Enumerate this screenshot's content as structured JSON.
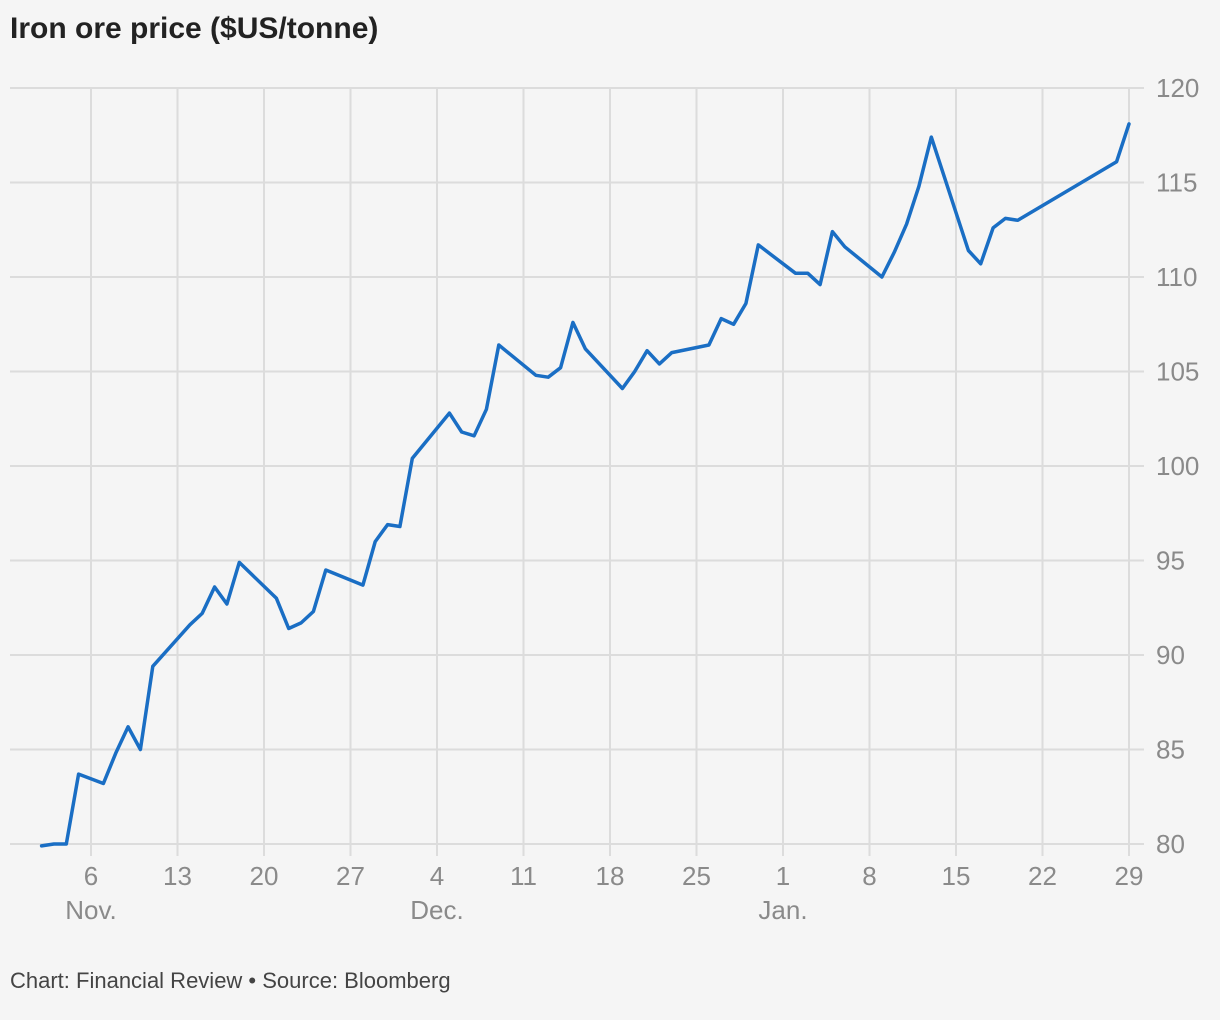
{
  "chart_data": {
    "type": "line",
    "title": "Iron ore price ($US/tonne)",
    "xlabel": "",
    "ylabel": "",
    "ylim": [
      80,
      120
    ],
    "y_ticks": [
      80,
      85,
      90,
      95,
      100,
      105,
      110,
      115,
      120
    ],
    "x_ticks": [
      {
        "day": 6,
        "label": "6"
      },
      {
        "day": 13,
        "label": "13"
      },
      {
        "day": 20,
        "label": "20"
      },
      {
        "day": 27,
        "label": "27"
      },
      {
        "day": 34,
        "label": "4"
      },
      {
        "day": 41,
        "label": "11"
      },
      {
        "day": 48,
        "label": "18"
      },
      {
        "day": 55,
        "label": "25"
      },
      {
        "day": 62,
        "label": "1"
      },
      {
        "day": 69,
        "label": "8"
      },
      {
        "day": 76,
        "label": "15"
      },
      {
        "day": 83,
        "label": "22"
      },
      {
        "day": 90,
        "label": "29"
      }
    ],
    "month_labels": [
      {
        "day": 6,
        "label": "Nov."
      },
      {
        "day": 34,
        "label": "Dec."
      },
      {
        "day": 62,
        "label": "Jan."
      }
    ],
    "grid": true,
    "y_axis_side": "right",
    "series_color": "#1a6ec4",
    "x": [
      2,
      3,
      4,
      5,
      7,
      8,
      9,
      10,
      11,
      14,
      15,
      16,
      17,
      18,
      21,
      22,
      23,
      24,
      25,
      28,
      29,
      30,
      31,
      32,
      35,
      36,
      37,
      38,
      39,
      42,
      43,
      44,
      45,
      46,
      49,
      50,
      51,
      52,
      53,
      56,
      57,
      58,
      59,
      60,
      63,
      64,
      65,
      66,
      67,
      70,
      71,
      72,
      73,
      74,
      77,
      78,
      79,
      80,
      81,
      89,
      90
    ],
    "y": [
      79.9,
      80.0,
      80.0,
      83.7,
      83.2,
      84.8,
      86.2,
      85.0,
      89.4,
      91.6,
      92.2,
      93.6,
      92.7,
      94.9,
      93.0,
      91.4,
      91.7,
      92.3,
      94.5,
      93.7,
      96.0,
      96.9,
      96.8,
      100.4,
      102.8,
      101.8,
      101.6,
      103.0,
      106.4,
      104.8,
      104.7,
      105.2,
      107.6,
      106.2,
      104.1,
      105.0,
      106.1,
      105.4,
      106.0,
      106.4,
      107.8,
      107.5,
      108.6,
      111.7,
      110.2,
      110.2,
      109.6,
      112.4,
      111.6,
      110.0,
      111.3,
      112.8,
      114.8,
      117.4,
      111.4,
      110.7,
      112.6,
      113.1,
      113.0,
      116.1,
      118.1
    ]
  },
  "footer": "Chart: Financial Review • Source: Bloomberg"
}
